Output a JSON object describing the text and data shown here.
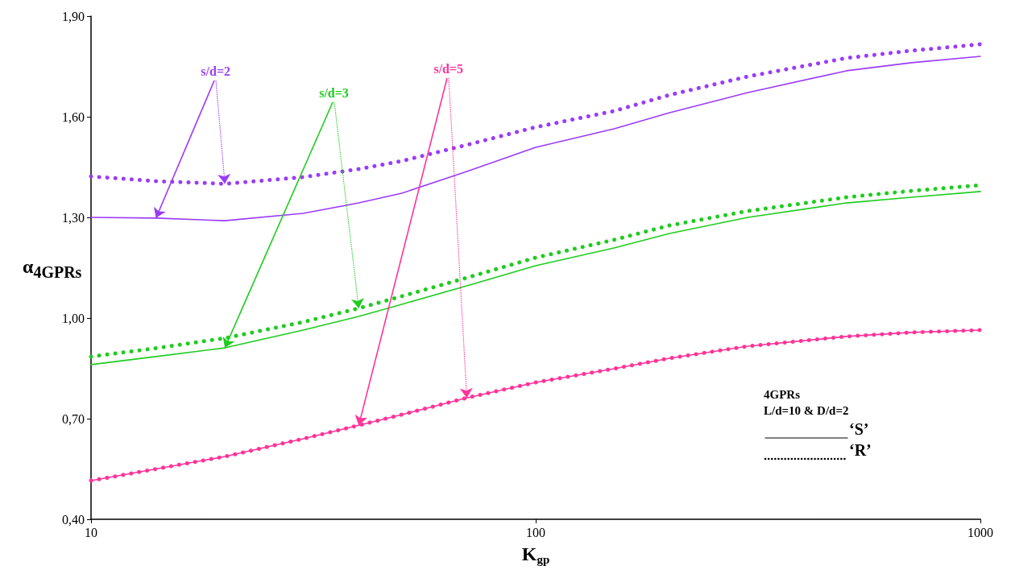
{
  "chart_data": {
    "type": "line",
    "xlabel": "K$_{gp}$",
    "ylabel": "α$_{4GPRs}$",
    "x": [
      10,
      14,
      20,
      30,
      40,
      50,
      70,
      100,
      150,
      200,
      300,
      500,
      700,
      1000
    ],
    "series": [
      {
        "color": "#9b3cf5",
        "line_style": "solid",
        "values": [
          1.3,
          1.298,
          1.29,
          1.312,
          1.343,
          1.372,
          1.437,
          1.509,
          1.564,
          1.612,
          1.672,
          1.737,
          1.761,
          1.78
        ]
      },
      {
        "color": "#9b3cf5",
        "line_style": "dotted",
        "values": [
          1.422,
          1.408,
          1.4,
          1.42,
          1.444,
          1.468,
          1.516,
          1.569,
          1.617,
          1.665,
          1.72,
          1.775,
          1.797,
          1.816
        ]
      },
      {
        "color": "#1fcc1f",
        "line_style": "solid",
        "values": [
          0.861,
          0.885,
          0.911,
          0.964,
          1.005,
          1.041,
          1.096,
          1.156,
          1.209,
          1.252,
          1.3,
          1.343,
          1.36,
          1.377
        ]
      },
      {
        "color": "#1fcc1f",
        "line_style": "dotted",
        "values": [
          0.885,
          0.91,
          0.94,
          0.988,
          1.029,
          1.065,
          1.12,
          1.18,
          1.233,
          1.276,
          1.319,
          1.36,
          1.379,
          1.396
        ]
      },
      {
        "color": "#ff3399",
        "line_style": "solid",
        "values": [
          0.515,
          0.55,
          0.587,
          0.64,
          0.68,
          0.712,
          0.762,
          0.808,
          0.849,
          0.88,
          0.916,
          0.945,
          0.957,
          0.964
        ]
      },
      {
        "color": "#ff3399",
        "line_style": "dotted",
        "values": [
          0.515,
          0.55,
          0.587,
          0.64,
          0.68,
          0.712,
          0.762,
          0.808,
          0.849,
          0.88,
          0.916,
          0.945,
          0.957,
          0.964
        ]
      }
    ],
    "log": "x",
    "xlim": [
      10,
      1000
    ],
    "xticks": [
      10,
      100,
      1000
    ],
    "ylim": [
      0.4,
      1.9
    ],
    "yticks": [
      {
        "value": 0.4,
        "label": "0,40"
      },
      {
        "value": 0.7,
        "label": "0,70"
      },
      {
        "value": 1.0,
        "label": "1,00"
      },
      {
        "value": 1.3,
        "label": "1,30"
      },
      {
        "value": 1.6,
        "label": "1,60"
      },
      {
        "value": 1.9,
        "label": "1,90"
      }
    ],
    "grid": false,
    "marker": "none",
    "annotations": [
      {
        "text": "s/d=2",
        "x": 20,
        "y": 1.4
      },
      {
        "text": "s/d=3",
        "x": 40,
        "y": 1.029
      },
      {
        "text": "s/d=5",
        "x": 70,
        "y": 0.762
      },
      "4GPRs",
      "L/d=10 & D/d=2",
      "‘S’",
      "‘R’"
    ]
  }
}
